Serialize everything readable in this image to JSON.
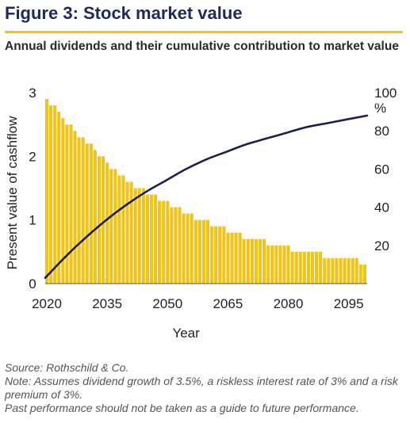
{
  "header": {
    "title": "Figure 3: Stock market value",
    "subtitle": "Annual dividends and their cumulative contribution to market value"
  },
  "footer": {
    "source": "Source: Rothschild & Co.",
    "note": "Note: Assumes dividend growth of 3.5%, a riskless interest rate of 3% and a risk premium of 3%.",
    "disclaimer": "Past performance should not be taken as a guide to future performance."
  },
  "colors": {
    "bar": "#f2c318",
    "line": "#1c1f4f",
    "title": "#1c2a5e",
    "accent_rule": "#f2c318"
  },
  "chart_data": {
    "type": "bar",
    "title": "",
    "xlabel": "Year",
    "ylabel": "Present value of cashflow",
    "y2unit": "%",
    "xlim": [
      2020,
      2100
    ],
    "ylim": [
      0,
      3
    ],
    "y2lim": [
      0,
      100
    ],
    "x_ticks": [
      2020,
      2035,
      2050,
      2065,
      2080,
      2095
    ],
    "y_ticks": [
      0,
      1,
      2,
      3
    ],
    "y2_ticks": [
      20,
      40,
      60,
      80,
      100
    ],
    "grid": false,
    "legend": "none",
    "series": [
      {
        "type": "bar",
        "axis": "left",
        "x": [
          2020,
          2021,
          2022,
          2023,
          2024,
          2025,
          2026,
          2027,
          2028,
          2029,
          2030,
          2031,
          2032,
          2033,
          2034,
          2035,
          2036,
          2037,
          2038,
          2039,
          2040,
          2041,
          2042,
          2043,
          2044,
          2045,
          2046,
          2047,
          2048,
          2049,
          2050,
          2051,
          2052,
          2053,
          2054,
          2055,
          2056,
          2057,
          2058,
          2059,
          2060,
          2061,
          2062,
          2063,
          2064,
          2065,
          2066,
          2067,
          2068,
          2069,
          2070,
          2071,
          2072,
          2073,
          2074,
          2075,
          2076,
          2077,
          2078,
          2079,
          2080,
          2081,
          2082,
          2083,
          2084,
          2085,
          2086,
          2087,
          2088,
          2089,
          2090,
          2091,
          2092,
          2093,
          2094,
          2095,
          2096,
          2097,
          2098,
          2099
        ],
        "values": [
          2.9,
          2.8,
          2.8,
          2.7,
          2.6,
          2.5,
          2.5,
          2.4,
          2.3,
          2.3,
          2.2,
          2.2,
          2.1,
          2.0,
          2.0,
          1.9,
          1.8,
          1.8,
          1.7,
          1.7,
          1.6,
          1.6,
          1.5,
          1.5,
          1.5,
          1.4,
          1.4,
          1.4,
          1.3,
          1.3,
          1.3,
          1.2,
          1.2,
          1.2,
          1.1,
          1.1,
          1.1,
          1.0,
          1.0,
          1.0,
          1.0,
          0.9,
          0.9,
          0.9,
          0.9,
          0.8,
          0.8,
          0.8,
          0.8,
          0.7,
          0.7,
          0.7,
          0.7,
          0.7,
          0.7,
          0.6,
          0.6,
          0.6,
          0.6,
          0.6,
          0.6,
          0.5,
          0.5,
          0.5,
          0.5,
          0.5,
          0.5,
          0.5,
          0.5,
          0.4,
          0.4,
          0.4,
          0.4,
          0.4,
          0.4,
          0.4,
          0.4,
          0.4,
          0.3,
          0.3
        ]
      },
      {
        "type": "line",
        "axis": "right",
        "x": [
          2020,
          2025,
          2030,
          2035,
          2040,
          2045,
          2050,
          2055,
          2060,
          2065,
          2070,
          2075,
          2080,
          2085,
          2090,
          2095,
          2100
        ],
        "values": [
          3,
          14,
          24,
          33,
          41,
          48,
          54,
          60,
          65,
          69,
          73,
          76,
          79,
          82,
          84,
          86,
          88
        ]
      }
    ]
  }
}
